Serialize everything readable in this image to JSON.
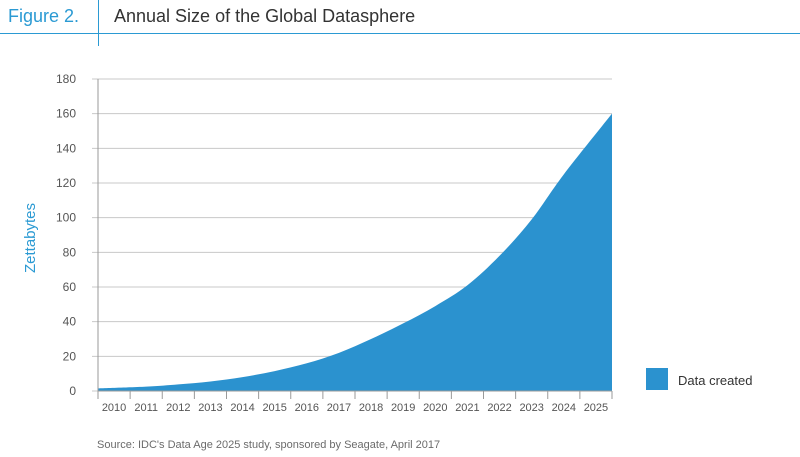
{
  "header": {
    "figure_label": "Figure 2.",
    "title": "Annual Size of the Global Datasphere"
  },
  "source": "Source: IDC's Data Age 2025 study, sponsored by Seagate, April 2017",
  "colors": {
    "accent": "#2b9ad3",
    "area": "#2b92cf",
    "grid": "#c8c8c8",
    "axis_text": "#555555"
  },
  "chart_data": {
    "type": "area",
    "title": "Annual Size of the Global Datasphere",
    "xlabel": "",
    "ylabel": "Zettabytes",
    "ylim": [
      0,
      180
    ],
    "yticks": [
      0,
      20,
      40,
      60,
      80,
      100,
      120,
      140,
      160,
      180
    ],
    "grid": true,
    "legend_position": "right",
    "x": [
      "2010",
      "2011",
      "2012",
      "2013",
      "2014",
      "2015",
      "2016",
      "2017",
      "2018",
      "2019",
      "2020",
      "2021",
      "2022",
      "2023",
      "2024",
      "2025"
    ],
    "series": [
      {
        "name": "Data created",
        "values": [
          1.5,
          2.5,
          3.8,
          5.5,
          8,
          11.5,
          16,
          22,
          30,
          39,
          49,
          61,
          78,
          99,
          125,
          160
        ]
      }
    ]
  }
}
